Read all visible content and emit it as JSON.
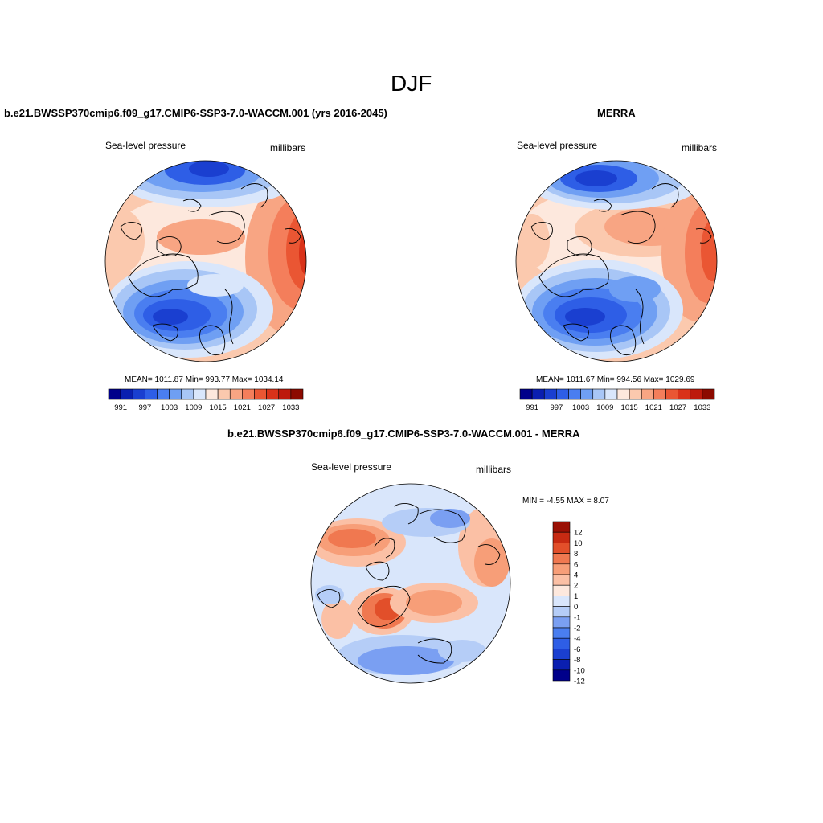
{
  "figure": {
    "title": "DJF"
  },
  "palette_abs": [
    "#00008a",
    "#0a1fb0",
    "#1a3fd0",
    "#2e5ee6",
    "#4a7ef0",
    "#6f9ff3",
    "#a8c6f6",
    "#d9e6fb",
    "#fde8dd",
    "#fbc9ae",
    "#f8a583",
    "#f47e5b",
    "#ea5633",
    "#d93219",
    "#bd1a0c",
    "#8c0a00"
  ],
  "palette_diff": [
    "#00008a",
    "#0a1fb0",
    "#1a3fd0",
    "#2e5ee6",
    "#4a7ef0",
    "#7a9ff2",
    "#b5cdf7",
    "#d9e6fb",
    "#fde8dd",
    "#fbc0a5",
    "#f79e78",
    "#f07850",
    "#e24f2a",
    "#c72a12",
    "#9a1004"
  ],
  "colors": {
    "text": "#000000",
    "background": "#ffffff",
    "outline": "#000000"
  },
  "chart_data": [
    {
      "type": "heatmap",
      "panel": "model",
      "title": "b.e21.BWSSP370cmip6.f09_g17.CMIP6-SSP3-7.0-WACCM.001 (yrs 2016-2045)",
      "left_label": "Sea-level pressure",
      "right_label": "millibars",
      "stats_text": "MEAN= 1011.87  Min= 993.77  Max= 1034.14",
      "mean": 1011.87,
      "min": 993.77,
      "max": 1034.14,
      "units": "millibars",
      "levels": [
        991,
        994,
        997,
        1000,
        1003,
        1006,
        1009,
        1012,
        1015,
        1018,
        1021,
        1024,
        1027,
        1030,
        1033
      ],
      "colorbar_labels": [
        "991",
        "997",
        "1003",
        "1009",
        "1015",
        "1021",
        "1027",
        "1033"
      ],
      "projection": "north polar stereographic"
    },
    {
      "type": "heatmap",
      "panel": "obs",
      "title": "MERRA",
      "left_label": "Sea-level pressure",
      "right_label": "millibars",
      "stats_text": "MEAN= 1011.67  Min= 994.56  Max= 1029.69",
      "mean": 1011.67,
      "min": 994.56,
      "max": 1029.69,
      "units": "millibars",
      "levels": [
        991,
        994,
        997,
        1000,
        1003,
        1006,
        1009,
        1012,
        1015,
        1018,
        1021,
        1024,
        1027,
        1030,
        1033
      ],
      "colorbar_labels": [
        "991",
        "997",
        "1003",
        "1009",
        "1015",
        "1021",
        "1027",
        "1033"
      ],
      "projection": "north polar stereographic"
    },
    {
      "type": "heatmap",
      "panel": "difference",
      "title": "b.e21.BWSSP370cmip6.f09_g17.CMIP6-SSP3-7.0-WACCM.001 - MERRA",
      "left_label": "Sea-level pressure",
      "right_label": "millibars",
      "stats_text": "MIN =  -4.55 MAX =   8.07",
      "min": -4.55,
      "max": 8.07,
      "units": "millibars",
      "levels": [
        -12,
        -10,
        -8,
        -6,
        -4,
        -2,
        -1,
        0,
        1,
        2,
        4,
        6,
        8,
        10,
        12
      ],
      "colorbar_labels": [
        "12",
        "10",
        "8",
        "6",
        "4",
        "2",
        "1",
        "0",
        "-1",
        "-2",
        "-4",
        "-6",
        "-8",
        "-10",
        "-12"
      ],
      "projection": "north polar stereographic"
    }
  ]
}
